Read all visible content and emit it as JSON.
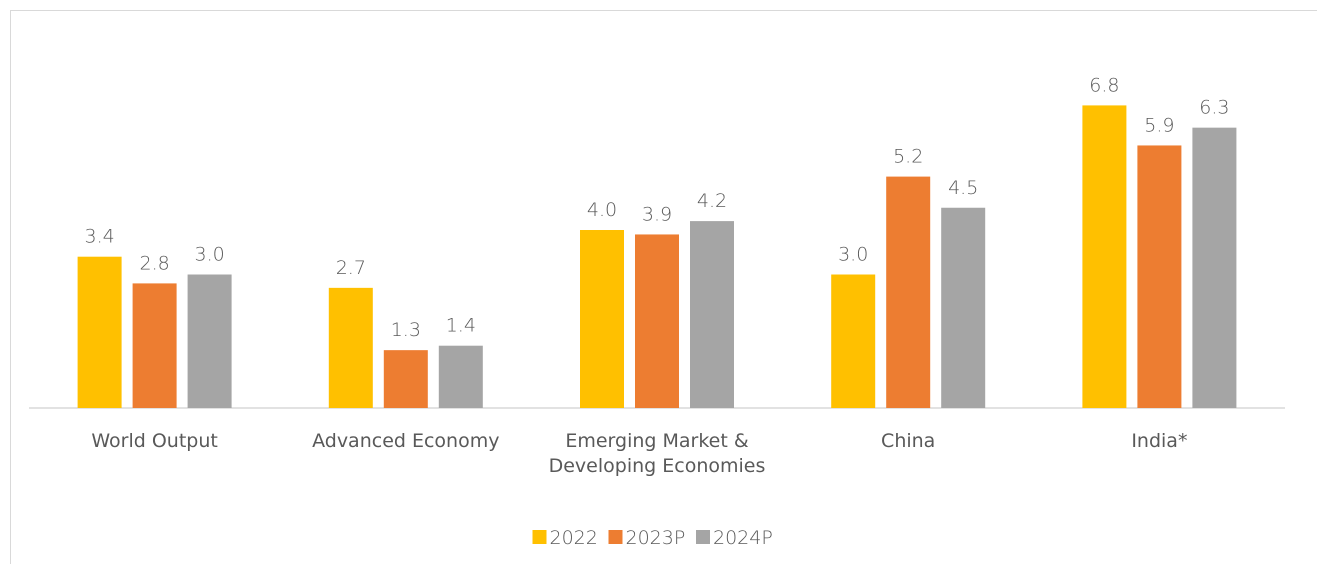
{
  "chart_data": {
    "type": "bar",
    "categories": [
      "World Output",
      "Advanced Economy",
      "Emerging Market & Developing Economies",
      "China",
      "India*"
    ],
    "series": [
      {
        "name": "2022",
        "color": "#ffc000",
        "values": [
          3.4,
          2.7,
          4.0,
          3.0,
          6.8
        ],
        "value_labels": [
          "3.4",
          "2.7",
          "4.0",
          "3.0",
          "6.8"
        ]
      },
      {
        "name": "2023P",
        "color": "#ed7d31",
        "values": [
          2.8,
          1.3,
          3.9,
          5.2,
          5.9
        ],
        "value_labels": [
          "2.8",
          "1.3",
          "3.9",
          "5.2",
          "5.9"
        ]
      },
      {
        "name": "2024P",
        "color": "#a5a5a5",
        "values": [
          3.0,
          1.4,
          4.2,
          4.5,
          6.3
        ],
        "value_labels": [
          "3.0",
          "1.4",
          "4.2",
          "4.5",
          "6.3"
        ]
      }
    ],
    "legend": "bottom"
  }
}
